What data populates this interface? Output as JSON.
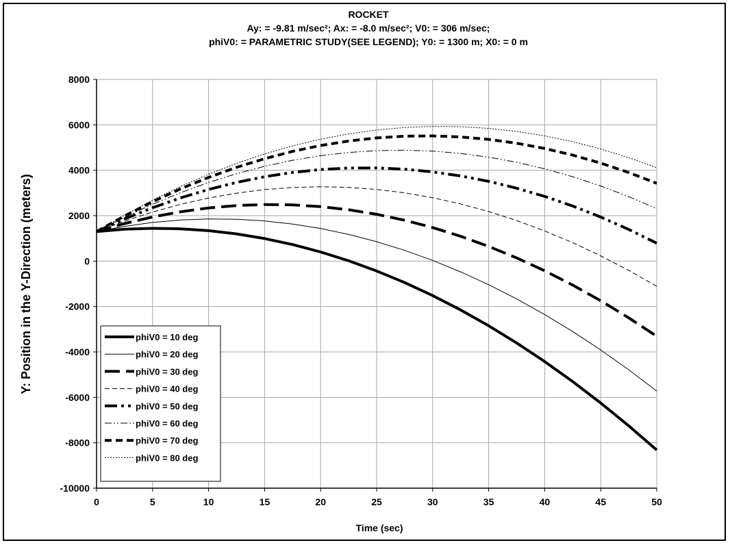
{
  "chart_data": {
    "type": "line",
    "title": "ROCKET",
    "subtitle_lines": [
      "Ay:  = -9.81 m/sec²; Ax:  = -8.0 m/sec²; V0:  = 306 m/sec;",
      "phiV0:  = PARAMETRIC STUDY(SEE LEGEND); Y0:  = 1300 m; X0:  = 0 m"
    ],
    "xlabel": "Time (sec)",
    "ylabel": "Y: Position in the Y-Direction (meters)",
    "xlim": [
      0,
      50
    ],
    "ylim": [
      -10000,
      8000
    ],
    "xticks": [
      0,
      5,
      10,
      15,
      20,
      25,
      30,
      35,
      40,
      45,
      50
    ],
    "yticks": [
      -10000,
      -8000,
      -6000,
      -4000,
      -2000,
      0,
      2000,
      4000,
      6000,
      8000
    ],
    "grid": true,
    "legend_position": "bottom-left",
    "x": [
      0,
      2.5,
      5,
      7.5,
      10,
      12.5,
      15,
      17.5,
      20,
      22.5,
      25,
      27.5,
      30,
      32.5,
      35,
      37.5,
      40,
      42.5,
      45,
      47.5,
      50
    ],
    "series": [
      {
        "name": "phiV0 = 10 deg",
        "style": "thick-solid",
        "values": [
          1300,
          1402,
          1443,
          1422,
          1340,
          1197,
          993,
          727,
          401,
          13,
          -436,
          -946,
          -1518,
          -2152,
          -2848,
          -3605,
          -4425,
          -5306,
          -6249,
          -7254,
          -8321
        ]
      },
      {
        "name": "phiV0 = 20 deg",
        "style": "thin-solid",
        "values": [
          1300,
          1531,
          1701,
          1809,
          1856,
          1842,
          1767,
          1630,
          1432,
          1173,
          853,
          472,
          30,
          -474,
          -1039,
          -1665,
          -2353,
          -3102,
          -3913,
          -4786,
          -5721
        ]
      },
      {
        "name": "phiV0 = 30 deg",
        "style": "thick-longdash",
        "values": [
          1300,
          1652,
          1943,
          2172,
          2340,
          2447,
          2492,
          2476,
          2398,
          2259,
          2059,
          1798,
          1476,
          1092,
          647,
          141,
          -427,
          -1056,
          -1746,
          -2498,
          -3311
        ]
      },
      {
        "name": "phiV0 = 40 deg",
        "style": "thin-dash",
        "values": [
          1300,
          1761,
          2161,
          2500,
          2777,
          2993,
          3148,
          3241,
          3274,
          3245,
          3155,
          3004,
          2791,
          2517,
          2182,
          1786,
          1329,
          811,
          231,
          -410,
          -1111
        ]
      },
      {
        "name": "phiV0 = 50 deg",
        "style": "thick-dashdotdot",
        "values": [
          1300,
          1855,
          2350,
          2783,
          3155,
          3466,
          3715,
          3904,
          4031,
          4097,
          4102,
          4046,
          3928,
          3750,
          3510,
          3209,
          2847,
          2424,
          1940,
          1394,
          788
        ]
      },
      {
        "name": "phiV0 = 60 deg",
        "style": "thin-dashdotdot",
        "values": [
          1300,
          1932,
          2503,
          3013,
          3461,
          3848,
          4174,
          4439,
          4642,
          4784,
          4865,
          4885,
          4843,
          4740,
          4576,
          4351,
          4065,
          3717,
          3308,
          2838,
          2307
        ]
      },
      {
        "name": "phiV0 = 70 deg",
        "style": "thick-dash",
        "values": [
          1300,
          1988,
          2615,
          3181,
          3685,
          4128,
          4510,
          4830,
          5089,
          5287,
          5424,
          5499,
          5514,
          5467,
          5359,
          5190,
          4959,
          4668,
          4315,
          3901,
          3425
        ]
      },
      {
        "name": "phiV0 = 80 deg",
        "style": "thin-dot",
        "values": [
          1300,
          2023,
          2685,
          3286,
          3825,
          4303,
          4719,
          5074,
          5368,
          5601,
          5772,
          5882,
          5931,
          5918,
          5844,
          5709,
          5513,
          5255,
          4936,
          4556,
          4115
        ]
      }
    ]
  }
}
